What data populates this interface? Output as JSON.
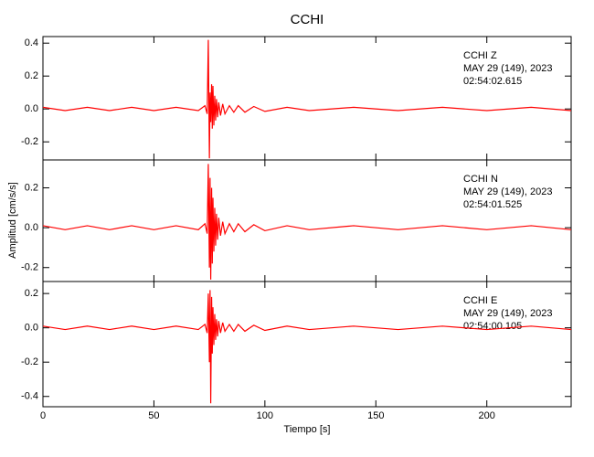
{
  "chart_data": [
    {
      "type": "line",
      "title": "CCHI",
      "annotations": [
        "CCHI   Z",
        "MAY 29 (149), 2023",
        "02:54:02.615"
      ],
      "x": [
        0,
        10,
        20,
        30,
        40,
        50,
        60,
        70,
        73,
        74,
        74.5,
        75,
        75.3,
        75.6,
        76,
        76.3,
        76.6,
        77,
        77.4,
        77.8,
        78.2,
        78.7,
        79.2,
        80,
        81,
        82,
        84,
        86,
        88,
        91,
        95,
        100,
        110,
        120,
        140,
        160,
        180,
        200,
        220,
        238
      ],
      "series": [
        {
          "color": "#ff0000",
          "values": [
            0.01,
            -0.01,
            0.01,
            -0.01,
            0.01,
            -0.01,
            0.01,
            -0.01,
            0.02,
            -0.03,
            0.42,
            -0.3,
            0.1,
            -0.08,
            0.15,
            -0.12,
            0.14,
            -0.1,
            0.08,
            -0.07,
            0.06,
            -0.05,
            0.04,
            -0.04,
            0.03,
            -0.03,
            0.02,
            -0.02,
            0.02,
            -0.02,
            0.015,
            -0.015,
            0.01,
            -0.01,
            0.01,
            -0.01,
            0.01,
            -0.01,
            0.01,
            -0.01
          ]
        }
      ],
      "xlim": [
        0,
        238
      ],
      "ylim": [
        -0.31,
        0.44
      ],
      "yticks": [
        0.4,
        0.2,
        {
          "value": 0,
          "label": "0.0"
        },
        -0.2
      ]
    },
    {
      "type": "line",
      "ylabel": "Amplitud [cm/s/s]",
      "annotations": [
        "CCHI   N",
        "MAY 29 (149), 2023",
        "02:54:01.525"
      ],
      "x": [
        0,
        10,
        20,
        30,
        40,
        50,
        60,
        70,
        73,
        74,
        74.5,
        75,
        75.3,
        75.6,
        76,
        76.3,
        76.6,
        77,
        77.4,
        77.8,
        78.2,
        78.7,
        79.2,
        80,
        81,
        82,
        84,
        86,
        88,
        91,
        95,
        100,
        110,
        120,
        140,
        160,
        180,
        200,
        220,
        238
      ],
      "series": [
        {
          "color": "#ff0000",
          "values": [
            0.01,
            -0.01,
            0.01,
            -0.01,
            0.01,
            -0.01,
            0.01,
            -0.01,
            0.02,
            -0.03,
            0.32,
            -0.2,
            0.25,
            -0.26,
            0.2,
            -0.18,
            0.15,
            -0.12,
            0.1,
            -0.09,
            0.07,
            -0.06,
            0.05,
            -0.04,
            0.03,
            -0.03,
            0.02,
            -0.02,
            0.02,
            -0.02,
            0.015,
            -0.015,
            0.01,
            -0.01,
            0.01,
            -0.01,
            0.01,
            -0.01,
            0.01,
            -0.01
          ]
        }
      ],
      "xlim": [
        0,
        238
      ],
      "ylim": [
        -0.27,
        0.34
      ],
      "yticks": [
        0.2,
        {
          "value": 0,
          "label": "0.0"
        },
        -0.2
      ]
    },
    {
      "type": "line",
      "xlabel": "Tiempo [s]",
      "annotations": [
        "CCHI   E",
        "MAY 29 (149), 2023",
        "02:54:00.105"
      ],
      "x": [
        0,
        10,
        20,
        30,
        40,
        50,
        60,
        70,
        73,
        74,
        74.5,
        75,
        75.3,
        75.6,
        76,
        76.3,
        76.6,
        77,
        77.4,
        77.8,
        78.2,
        78.7,
        79.2,
        80,
        81,
        82,
        84,
        86,
        88,
        91,
        95,
        100,
        110,
        120,
        140,
        160,
        180,
        200,
        220,
        238
      ],
      "series": [
        {
          "color": "#ff0000",
          "values": [
            0.01,
            -0.01,
            0.01,
            -0.01,
            0.01,
            -0.01,
            0.01,
            -0.01,
            0.02,
            -0.03,
            0.2,
            -0.2,
            0.22,
            -0.44,
            0.18,
            -0.15,
            0.12,
            -0.1,
            0.08,
            -0.07,
            0.05,
            -0.05,
            0.04,
            -0.03,
            0.03,
            -0.02,
            0.02,
            -0.02,
            0.02,
            -0.02,
            0.015,
            -0.015,
            0.01,
            -0.01,
            0.01,
            -0.01,
            0.01,
            -0.01,
            0.01,
            -0.01
          ]
        }
      ],
      "xlim": [
        0,
        238
      ],
      "ylim": [
        -0.46,
        0.27
      ],
      "xticks": [
        0,
        50,
        100,
        150,
        200
      ],
      "yticks": [
        0.2,
        {
          "value": 0,
          "label": "0.0"
        },
        -0.2,
        -0.4
      ]
    }
  ]
}
